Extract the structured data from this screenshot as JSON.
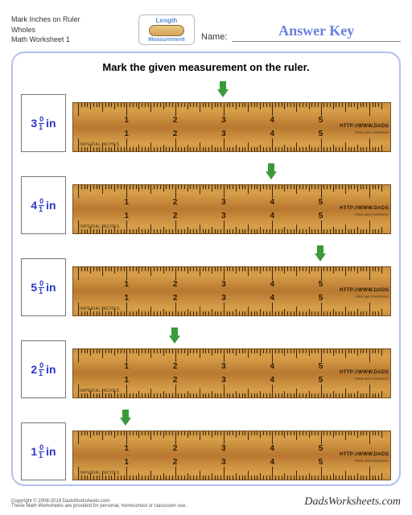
{
  "header": {
    "line1": "Mark Inches on Ruler",
    "line2": "Wholes",
    "line3": "Math Worksheet 1",
    "logo_top": "Length",
    "logo_bottom": "Measurement",
    "name_label": "Name:",
    "name_value": "Answer Key"
  },
  "instruction": "Mark the given measurement on the ruler.",
  "ruler": {
    "visible_min": 0,
    "visible_max": 6.3,
    "major_ticks": [
      1,
      2,
      3,
      4,
      5
    ],
    "sub_per_inch": 16,
    "label_imperial": "IMPERIAL INCHES",
    "url1": "HTTP://WWW.DADS",
    "url2": "FREE MATH WORKSH",
    "wood_colors": [
      "#c88f3e",
      "#d89f4a",
      "#b87830"
    ],
    "tick_color": "#3a2810"
  },
  "arrow": {
    "color": "#3a9a3a"
  },
  "problems": [
    {
      "whole": 3,
      "num": 0,
      "den": 1,
      "unit": "in",
      "value": 3
    },
    {
      "whole": 4,
      "num": 0,
      "den": 1,
      "unit": "in",
      "value": 4
    },
    {
      "whole": 5,
      "num": 0,
      "den": 1,
      "unit": "in",
      "value": 5
    },
    {
      "whole": 2,
      "num": 0,
      "den": 1,
      "unit": "in",
      "value": 2
    },
    {
      "whole": 1,
      "num": 0,
      "den": 1,
      "unit": "in",
      "value": 1
    }
  ],
  "footer": {
    "copyright": "Copyright © 2008-2019 DadsWorksheets.com",
    "note": "These Math Worksheets are provided for personal, homeschool or classroom use.",
    "brand": "DadsWorksheets.com"
  },
  "colors": {
    "frame_border": "#b4bff0",
    "value_text": "#2838c8",
    "answer_text": "#6a7fe0"
  }
}
